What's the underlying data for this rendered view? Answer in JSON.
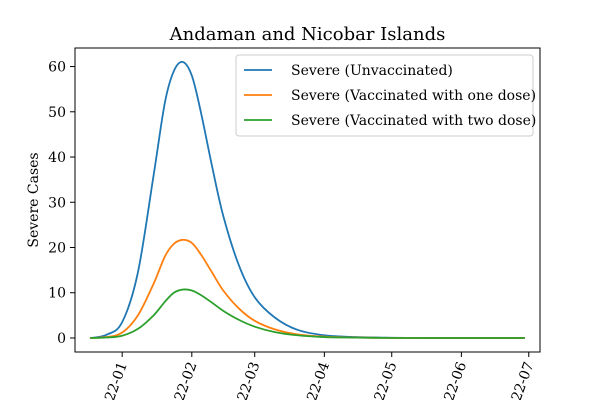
{
  "chart_data": {
    "type": "line",
    "title": "Andaman and Nicobar Islands",
    "xlabel": "",
    "ylabel": "Severe Cases",
    "x_tick_labels": [
      "2022-01",
      "2022-02",
      "2022-03",
      "2022-04",
      "2022-05",
      "2022-06",
      "2022-07"
    ],
    "x_tick_dates": [
      "2022-01-01",
      "2022-02-01",
      "2022-03-01",
      "2022-04-01",
      "2022-05-01",
      "2022-06-01",
      "2022-07-01"
    ],
    "xlim": [
      "2021-12-11",
      "2022-07-06"
    ],
    "y_ticks": [
      0,
      10,
      20,
      30,
      40,
      50,
      60
    ],
    "ylim": [
      -3.1,
      64.1
    ],
    "grid": false,
    "legend_position": "top-right",
    "x": [
      "2021-12-18",
      "2021-12-25",
      "2022-01-01",
      "2022-01-08",
      "2022-01-15",
      "2022-01-20",
      "2022-01-24",
      "2022-01-28",
      "2022-02-01",
      "2022-02-05",
      "2022-02-10",
      "2022-02-15",
      "2022-02-22",
      "2022-03-01",
      "2022-03-10",
      "2022-03-20",
      "2022-04-01",
      "2022-04-15",
      "2022-05-01",
      "2022-05-15",
      "2022-06-01",
      "2022-06-15",
      "2022-06-29"
    ],
    "series": [
      {
        "name": "Severe (Unvaccinated)",
        "color": "#1f77b4",
        "values": [
          0.0,
          0.7,
          3.5,
          14.5,
          36.0,
          52.0,
          59.0,
          61.0,
          58.0,
          50.0,
          38.0,
          27.0,
          16.0,
          9.0,
          4.5,
          1.8,
          0.6,
          0.2,
          0.05,
          0.0,
          0.0,
          0.0,
          0.0
        ]
      },
      {
        "name": "Severe (Vaccinated with one dose)",
        "color": "#ff7f0e",
        "values": [
          0.0,
          0.2,
          1.2,
          5.0,
          12.0,
          18.0,
          20.8,
          21.7,
          21.0,
          18.5,
          14.5,
          10.5,
          6.5,
          3.8,
          1.9,
          0.8,
          0.3,
          0.1,
          0.0,
          0.0,
          0.0,
          0.0,
          0.0
        ]
      },
      {
        "name": "Severe (Vaccinated with two dose)",
        "color": "#2ca02c",
        "values": [
          0.0,
          0.1,
          0.5,
          2.0,
          5.0,
          8.0,
          10.0,
          10.7,
          10.5,
          9.5,
          7.8,
          6.0,
          4.0,
          2.5,
          1.3,
          0.6,
          0.2,
          0.08,
          0.0,
          0.0,
          0.0,
          0.0,
          0.0
        ]
      }
    ]
  }
}
